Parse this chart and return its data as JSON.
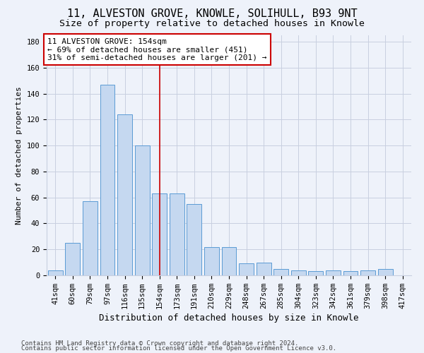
{
  "title_line1": "11, ALVESTON GROVE, KNOWLE, SOLIHULL, B93 9NT",
  "title_line2": "Size of property relative to detached houses in Knowle",
  "xlabel": "Distribution of detached houses by size in Knowle",
  "ylabel": "Number of detached properties",
  "categories": [
    "41sqm",
    "60sqm",
    "79sqm",
    "97sqm",
    "116sqm",
    "135sqm",
    "154sqm",
    "173sqm",
    "191sqm",
    "210sqm",
    "229sqm",
    "248sqm",
    "267sqm",
    "285sqm",
    "304sqm",
    "323sqm",
    "342sqm",
    "361sqm",
    "379sqm",
    "398sqm",
    "417sqm"
  ],
  "values": [
    4,
    25,
    57,
    147,
    124,
    100,
    63,
    63,
    55,
    22,
    22,
    9,
    10,
    5,
    4,
    3,
    4,
    3,
    4,
    5,
    0
  ],
  "bar_color": "#c5d8f0",
  "bar_edge_color": "#5b9bd5",
  "highlight_index": 6,
  "highlight_line_color": "#cc0000",
  "ylim": [
    0,
    185
  ],
  "yticks": [
    0,
    20,
    40,
    60,
    80,
    100,
    120,
    140,
    160,
    180
  ],
  "annotation_text": "11 ALVESTON GROVE: 154sqm\n← 69% of detached houses are smaller (451)\n31% of semi-detached houses are larger (201) →",
  "annotation_box_color": "#ffffff",
  "annotation_box_edge": "#cc0000",
  "footer_line1": "Contains HM Land Registry data © Crown copyright and database right 2024.",
  "footer_line2": "Contains public sector information licensed under the Open Government Licence v3.0.",
  "bg_color": "#eef2fa",
  "grid_color": "#c8cfe0",
  "title_fontsize": 11,
  "subtitle_fontsize": 9.5,
  "xlabel_fontsize": 9,
  "ylabel_fontsize": 8,
  "tick_fontsize": 7.5,
  "annotation_fontsize": 8,
  "footer_fontsize": 6.5
}
